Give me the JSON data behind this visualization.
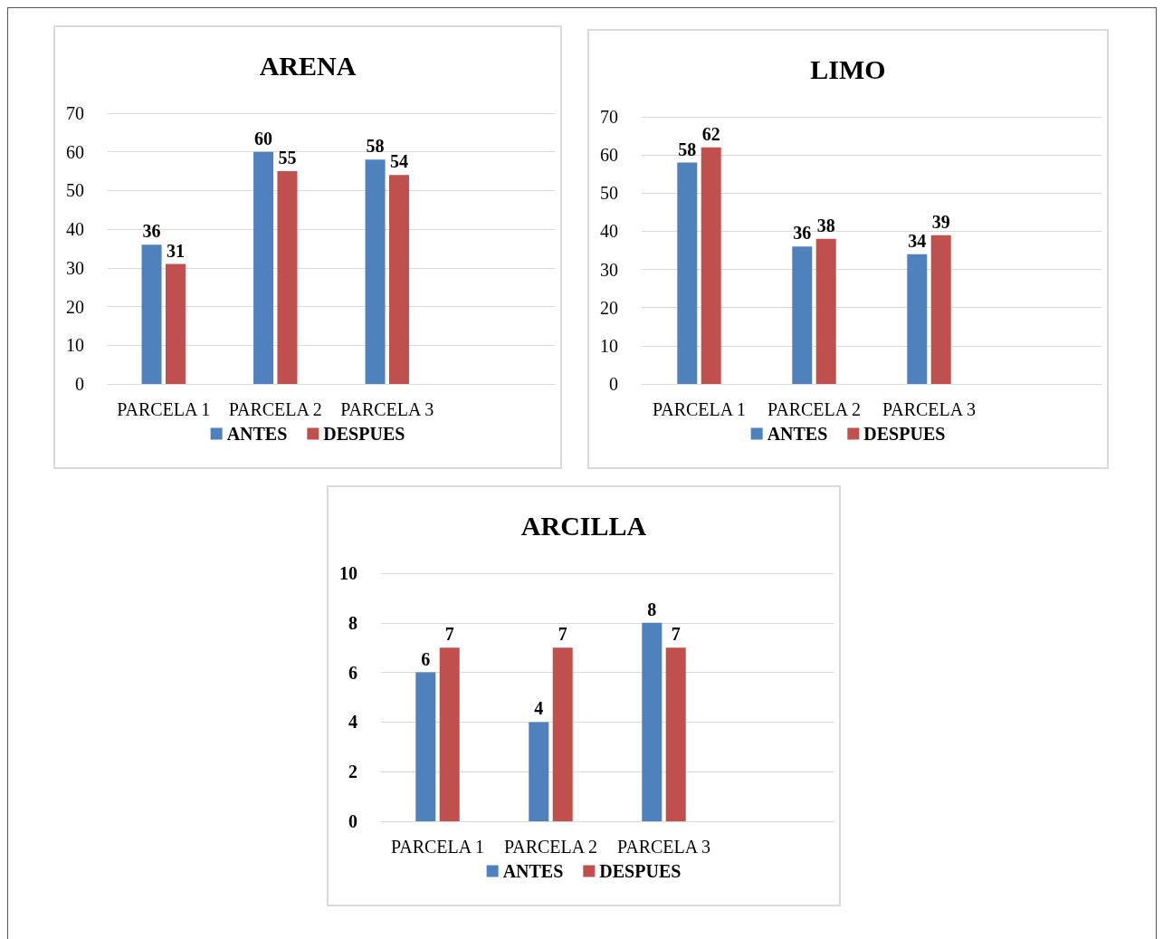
{
  "chart_data": [
    {
      "type": "bar",
      "title": "ARENA",
      "categories": [
        "PARCELA 1",
        "PARCELA 2",
        "PARCELA 3",
        null
      ],
      "series": [
        {
          "name": "ANTES",
          "color": "#4f81bd",
          "values": [
            36,
            60,
            58,
            null
          ]
        },
        {
          "name": "DESPUES",
          "color": "#c0504d",
          "values": [
            31,
            55,
            54,
            null
          ]
        }
      ],
      "ylim": [
        0,
        70
      ],
      "yticks": [
        0,
        10,
        20,
        30,
        40,
        50,
        60,
        70
      ],
      "grid": "y",
      "legend": "bottom",
      "data_labels": true
    },
    {
      "type": "bar",
      "title": "LIMO",
      "categories": [
        "PARCELA 1",
        "PARCELA 2",
        "PARCELA 3",
        null
      ],
      "series": [
        {
          "name": "ANTES",
          "color": "#4f81bd",
          "values": [
            58,
            36,
            34,
            null
          ]
        },
        {
          "name": "DESPUES",
          "color": "#c0504d",
          "values": [
            62,
            38,
            39,
            null
          ]
        }
      ],
      "ylim": [
        0,
        70
      ],
      "yticks": [
        0,
        10,
        20,
        30,
        40,
        50,
        60,
        70
      ],
      "grid": "y",
      "legend": "bottom",
      "data_labels": true
    },
    {
      "type": "bar",
      "title": "ARCILLA",
      "categories": [
        "PARCELA 1",
        "PARCELA 2",
        "PARCELA 3",
        null
      ],
      "series": [
        {
          "name": "ANTES",
          "color": "#4f81bd",
          "values": [
            6,
            4,
            8,
            null
          ]
        },
        {
          "name": "DESPUES",
          "color": "#c0504d",
          "values": [
            7,
            7,
            7,
            null
          ]
        }
      ],
      "ylim": [
        0,
        10
      ],
      "yticks": [
        0,
        2,
        4,
        6,
        8,
        10
      ],
      "grid": "y",
      "legend": "bottom",
      "data_labels": true
    }
  ]
}
